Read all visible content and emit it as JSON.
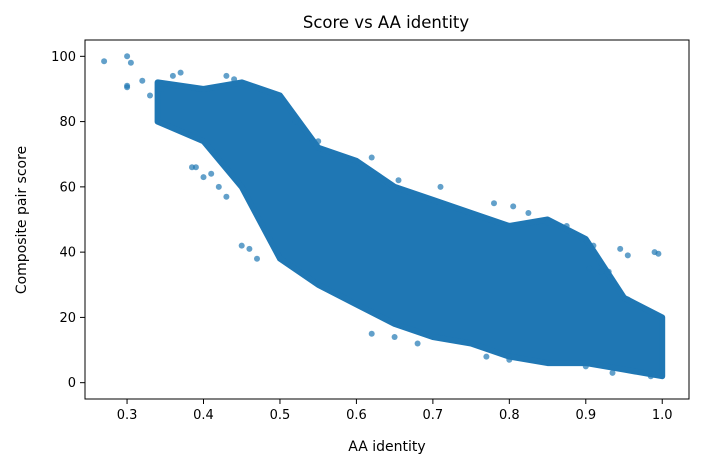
{
  "chart_data": {
    "type": "scatter",
    "title": "Score vs AA identity",
    "xlabel": "AA identity",
    "ylabel": "Composite pair score",
    "xlim": [
      0.245,
      1.035
    ],
    "ylim": [
      -5,
      105
    ],
    "xticks": [
      0.3,
      0.4,
      0.5,
      0.6,
      0.7,
      0.8,
      0.9,
      1.0
    ],
    "xtick_labels": [
      "0.3",
      "0.4",
      "0.5",
      "0.6",
      "0.7",
      "0.8",
      "0.9",
      "1.0"
    ],
    "yticks": [
      0,
      20,
      40,
      60,
      80,
      100
    ],
    "ytick_labels": [
      "0",
      "20",
      "40",
      "60",
      "80",
      "100"
    ],
    "grid": false,
    "marker_color": "#1f77b4",
    "marker_opacity": 0.7,
    "density_profile": [
      {
        "x": 0.34,
        "y_low": 80,
        "y_high": 92
      },
      {
        "x": 0.4,
        "y_low": 74,
        "y_high": 90
      },
      {
        "x": 0.45,
        "y_low": 60,
        "y_high": 92
      },
      {
        "x": 0.5,
        "y_low": 38,
        "y_high": 88
      },
      {
        "x": 0.55,
        "y_low": 30,
        "y_high": 72
      },
      {
        "x": 0.6,
        "y_low": 24,
        "y_high": 68
      },
      {
        "x": 0.65,
        "y_low": 18,
        "y_high": 60
      },
      {
        "x": 0.7,
        "y_low": 14,
        "y_high": 56
      },
      {
        "x": 0.75,
        "y_low": 12,
        "y_high": 52
      },
      {
        "x": 0.8,
        "y_low": 8,
        "y_high": 48
      },
      {
        "x": 0.85,
        "y_low": 6,
        "y_high": 50
      },
      {
        "x": 0.9,
        "y_low": 6,
        "y_high": 44
      },
      {
        "x": 0.95,
        "y_low": 4,
        "y_high": 26
      },
      {
        "x": 1.0,
        "y_low": 2,
        "y_high": 20
      }
    ],
    "points": [
      [
        0.27,
        98.5
      ],
      [
        0.3,
        100
      ],
      [
        0.305,
        98
      ],
      [
        0.3,
        90.5
      ],
      [
        0.3,
        91
      ],
      [
        0.32,
        92.5
      ],
      [
        0.33,
        88
      ],
      [
        0.345,
        90
      ],
      [
        0.36,
        94
      ],
      [
        0.37,
        95
      ],
      [
        0.385,
        66
      ],
      [
        0.39,
        66
      ],
      [
        0.4,
        63
      ],
      [
        0.41,
        64
      ],
      [
        0.42,
        60
      ],
      [
        0.43,
        57
      ],
      [
        0.45,
        42
      ],
      [
        0.46,
        41
      ],
      [
        0.47,
        38
      ],
      [
        0.43,
        94
      ],
      [
        0.44,
        93
      ],
      [
        0.455,
        91
      ],
      [
        0.52,
        80
      ],
      [
        0.55,
        74
      ],
      [
        0.62,
        69
      ],
      [
        0.655,
        62
      ],
      [
        0.71,
        60
      ],
      [
        0.78,
        55
      ],
      [
        0.805,
        54
      ],
      [
        0.825,
        52
      ],
      [
        0.85,
        49
      ],
      [
        0.875,
        48
      ],
      [
        0.895,
        44
      ],
      [
        0.91,
        42
      ],
      [
        0.905,
        35
      ],
      [
        0.92,
        34
      ],
      [
        0.93,
        34
      ],
      [
        0.945,
        41
      ],
      [
        0.955,
        39
      ],
      [
        0.99,
        40
      ],
      [
        0.995,
        39.5
      ],
      [
        0.955,
        25.5
      ],
      [
        0.62,
        15
      ],
      [
        0.65,
        14
      ],
      [
        0.68,
        12
      ],
      [
        0.77,
        8
      ],
      [
        0.8,
        7
      ],
      [
        0.9,
        5
      ],
      [
        0.935,
        3
      ],
      [
        0.985,
        2
      ],
      [
        0.995,
        3
      ]
    ]
  }
}
